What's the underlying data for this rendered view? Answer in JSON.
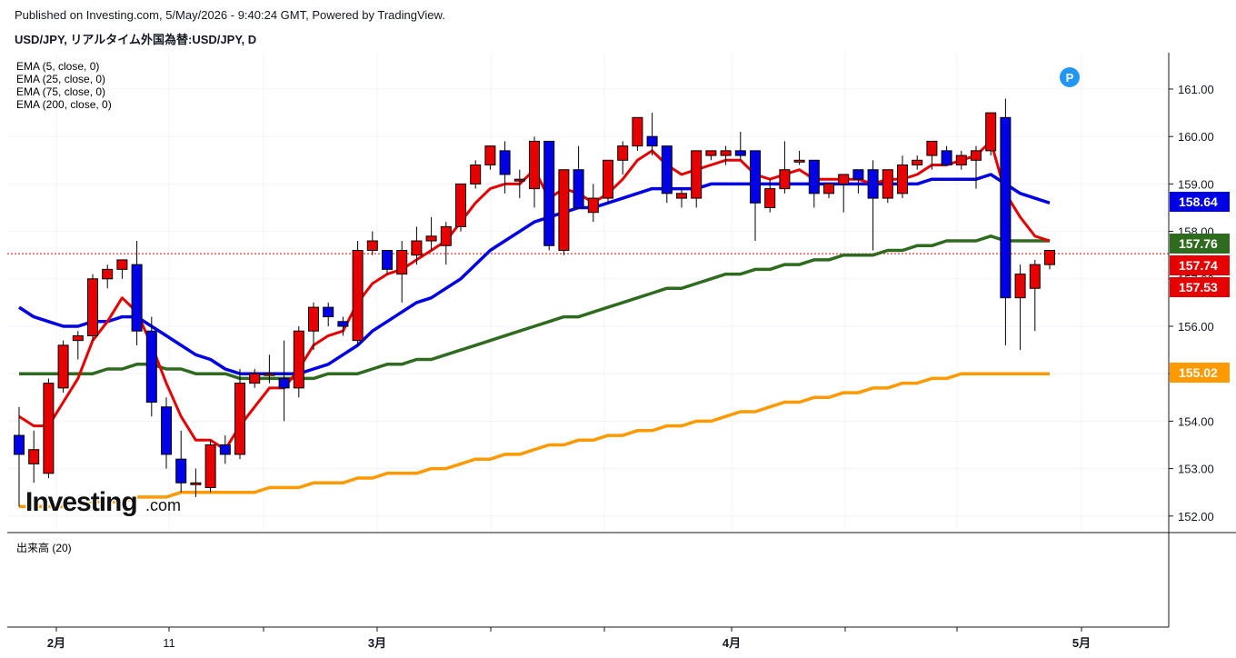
{
  "header": {
    "published": "Published on Investing.com, 5/May/2026 - 9:40:24 GMT, Powered by TradingView.",
    "symbol": "USD/JPY, リアルタイム外国為替:USD/JPY, D"
  },
  "legend": {
    "ema5": "EMA (5, close, 0)",
    "ema25": "EMA (25, close, 0)",
    "ema75": "EMA (75, close, 0)",
    "ema200": "EMA (200, close, 0)"
  },
  "volume_label": "出来高 (20)",
  "logo": {
    "text": "Investing",
    "suffix": ".com"
  },
  "marker_label": "P",
  "chart_data": {
    "type": "candlestick",
    "ylim": [
      151.75,
      161.75
    ],
    "y_ticks": [
      "161.00",
      "160.00",
      "159.00",
      "158.00",
      "157.00",
      "156.00",
      "155.00",
      "154.00",
      "153.00",
      "152.00"
    ],
    "x_ticks": [
      "2月",
      "11",
      "3月",
      "4月",
      "5月"
    ],
    "price_labels": [
      {
        "value": 158.64,
        "text": "158.64",
        "color": "#0000e6"
      },
      {
        "value": 157.76,
        "text": "157.76",
        "color": "#2e6b1f"
      },
      {
        "value": 157.74,
        "text": "157.74",
        "color": "#e60000"
      },
      {
        "value": 157.53,
        "text": "157.53",
        "color": "#e60000"
      },
      {
        "value": 155.02,
        "text": "155.02",
        "color": "#ff9900"
      }
    ],
    "last_price": 157.53,
    "colors": {
      "up": "#e60000",
      "down": "#0000e6",
      "ema5": "#e60000",
      "ema25": "#0000e6",
      "ema75": "#2e6b1f",
      "ema200": "#ff9900"
    },
    "candles": [
      [
        153.7,
        154.3,
        152.2,
        153.3
      ],
      [
        153.1,
        153.8,
        152.7,
        153.4
      ],
      [
        152.9,
        154.9,
        152.8,
        154.8
      ],
      [
        154.7,
        155.7,
        154.6,
        155.6
      ],
      [
        155.7,
        155.9,
        155.3,
        155.8
      ],
      [
        155.8,
        157.1,
        155.7,
        157.0
      ],
      [
        157.0,
        157.3,
        156.8,
        157.2
      ],
      [
        157.2,
        157.4,
        157.0,
        157.4
      ],
      [
        157.3,
        157.8,
        155.6,
        155.9
      ],
      [
        155.9,
        156.2,
        154.1,
        154.4
      ],
      [
        154.3,
        154.5,
        153.0,
        153.3
      ],
      [
        153.2,
        153.8,
        152.5,
        152.7
      ],
      [
        152.7,
        153.0,
        152.4,
        152.7
      ],
      [
        152.6,
        153.6,
        152.5,
        153.5
      ],
      [
        153.5,
        153.7,
        153.1,
        153.3
      ],
      [
        153.3,
        155.1,
        153.2,
        154.8
      ],
      [
        154.8,
        155.1,
        154.7,
        155.0
      ],
      [
        155.0,
        155.4,
        154.8,
        155.0
      ],
      [
        154.9,
        155.7,
        154.0,
        154.7
      ],
      [
        154.7,
        156.0,
        154.5,
        155.9
      ],
      [
        155.9,
        156.5,
        155.5,
        156.4
      ],
      [
        156.4,
        156.5,
        156.0,
        156.2
      ],
      [
        156.1,
        156.2,
        155.8,
        156.0
      ],
      [
        155.7,
        157.8,
        155.6,
        157.6
      ],
      [
        157.6,
        158.0,
        157.5,
        157.8
      ],
      [
        157.6,
        157.6,
        157.1,
        157.2
      ],
      [
        157.1,
        157.8,
        156.5,
        157.6
      ],
      [
        157.5,
        158.1,
        157.3,
        157.8
      ],
      [
        157.8,
        158.3,
        157.6,
        157.9
      ],
      [
        157.7,
        158.2,
        157.3,
        158.1
      ],
      [
        158.1,
        159.0,
        158.0,
        159.0
      ],
      [
        159.0,
        159.5,
        158.9,
        159.4
      ],
      [
        159.4,
        159.8,
        159.3,
        159.8
      ],
      [
        159.7,
        159.9,
        158.8,
        159.2
      ],
      [
        159.1,
        159.3,
        158.7,
        159.1
      ],
      [
        158.9,
        160.0,
        158.5,
        159.9
      ],
      [
        159.9,
        159.9,
        157.6,
        157.7
      ],
      [
        157.6,
        159.3,
        157.5,
        159.3
      ],
      [
        159.3,
        159.8,
        158.5,
        158.5
      ],
      [
        158.4,
        159.0,
        158.2,
        158.7
      ],
      [
        158.7,
        159.5,
        158.6,
        159.5
      ],
      [
        159.5,
        159.9,
        159.2,
        159.8
      ],
      [
        159.8,
        160.4,
        159.7,
        160.4
      ],
      [
        160.0,
        160.5,
        159.6,
        159.8
      ],
      [
        159.8,
        159.8,
        158.6,
        158.8
      ],
      [
        158.7,
        158.9,
        158.5,
        158.8
      ],
      [
        158.7,
        159.7,
        158.5,
        159.7
      ],
      [
        159.6,
        159.7,
        159.5,
        159.7
      ],
      [
        159.6,
        159.8,
        159.4,
        159.7
      ],
      [
        159.7,
        160.1,
        159.5,
        159.6
      ],
      [
        159.7,
        159.7,
        157.8,
        158.6
      ],
      [
        158.5,
        159.1,
        158.4,
        158.9
      ],
      [
        158.9,
        159.9,
        158.8,
        159.3
      ],
      [
        159.5,
        159.7,
        159.4,
        159.5
      ],
      [
        159.5,
        159.5,
        158.5,
        158.8
      ],
      [
        158.8,
        159.0,
        158.7,
        159.0
      ],
      [
        159.0,
        159.2,
        158.4,
        159.2
      ],
      [
        159.3,
        159.3,
        158.8,
        159.1
      ],
      [
        159.3,
        159.5,
        157.6,
        158.7
      ],
      [
        158.7,
        159.3,
        158.6,
        159.3
      ],
      [
        158.8,
        159.6,
        158.7,
        159.4
      ],
      [
        159.4,
        159.6,
        159.3,
        159.5
      ],
      [
        159.6,
        159.9,
        159.3,
        159.9
      ],
      [
        159.7,
        159.8,
        159.4,
        159.4
      ],
      [
        159.4,
        159.7,
        159.3,
        159.6
      ],
      [
        159.5,
        159.8,
        158.9,
        159.7
      ],
      [
        159.7,
        160.5,
        159.6,
        160.5
      ],
      [
        160.4,
        160.8,
        155.6,
        156.6
      ],
      [
        156.6,
        157.3,
        155.5,
        157.1
      ],
      [
        156.8,
        157.4,
        155.9,
        157.3
      ],
      [
        157.3,
        157.5,
        157.2,
        157.6
      ]
    ],
    "ema5": [
      154.1,
      153.9,
      153.9,
      154.4,
      154.9,
      155.7,
      156.1,
      156.6,
      156.3,
      155.6,
      154.8,
      154.1,
      153.6,
      153.6,
      153.4,
      153.9,
      154.3,
      154.7,
      154.7,
      155.1,
      155.6,
      155.8,
      155.9,
      156.5,
      156.9,
      157.1,
      157.2,
      157.4,
      157.6,
      157.8,
      158.2,
      158.6,
      158.9,
      159.0,
      159.0,
      159.3,
      158.7,
      158.9,
      158.8,
      158.6,
      158.8,
      159.1,
      159.5,
      159.7,
      159.4,
      159.2,
      159.3,
      159.4,
      159.5,
      159.5,
      159.2,
      159.1,
      159.2,
      159.3,
      159.1,
      159.1,
      159.1,
      159.1,
      159.0,
      159.1,
      159.1,
      159.2,
      159.4,
      159.4,
      159.5,
      159.6,
      159.9,
      158.8,
      158.3,
      157.9,
      157.8
    ],
    "ema25": [
      156.4,
      156.2,
      156.1,
      156.0,
      156.0,
      156.1,
      156.1,
      156.2,
      156.2,
      156.0,
      155.8,
      155.6,
      155.4,
      155.3,
      155.1,
      155.0,
      155.0,
      155.0,
      155.0,
      155.0,
      155.1,
      155.2,
      155.4,
      155.6,
      155.9,
      156.1,
      156.3,
      156.5,
      156.6,
      156.8,
      157.0,
      157.3,
      157.6,
      157.8,
      158.0,
      158.2,
      158.3,
      158.4,
      158.5,
      158.5,
      158.6,
      158.7,
      158.8,
      158.9,
      158.9,
      158.9,
      158.9,
      159.0,
      159.0,
      159.0,
      159.0,
      159.0,
      159.0,
      159.0,
      159.0,
      159.0,
      159.0,
      159.0,
      159.0,
      159.0,
      159.0,
      159.0,
      159.1,
      159.1,
      159.1,
      159.1,
      159.2,
      159.0,
      158.8,
      158.7,
      158.6
    ],
    "ema75": [
      155.0,
      155.0,
      155.0,
      155.0,
      155.0,
      155.0,
      155.1,
      155.1,
      155.2,
      155.2,
      155.1,
      155.1,
      155.0,
      155.0,
      155.0,
      154.9,
      154.9,
      154.9,
      154.9,
      154.9,
      154.9,
      155.0,
      155.0,
      155.0,
      155.1,
      155.2,
      155.2,
      155.3,
      155.3,
      155.4,
      155.5,
      155.6,
      155.7,
      155.8,
      155.9,
      156.0,
      156.1,
      156.2,
      156.2,
      156.3,
      156.4,
      156.5,
      156.6,
      156.7,
      156.8,
      156.8,
      156.9,
      157.0,
      157.1,
      157.1,
      157.2,
      157.2,
      157.3,
      157.3,
      157.4,
      157.4,
      157.5,
      157.5,
      157.5,
      157.6,
      157.6,
      157.7,
      157.7,
      157.8,
      157.8,
      157.8,
      157.9,
      157.8,
      157.8,
      157.8,
      157.8
    ],
    "ema200": [
      152.2,
      152.2,
      152.2,
      152.2,
      152.3,
      152.3,
      152.3,
      152.3,
      152.4,
      152.4,
      152.4,
      152.5,
      152.5,
      152.5,
      152.5,
      152.5,
      152.5,
      152.6,
      152.6,
      152.6,
      152.7,
      152.7,
      152.7,
      152.8,
      152.8,
      152.9,
      152.9,
      152.9,
      153.0,
      153.0,
      153.1,
      153.2,
      153.2,
      153.3,
      153.3,
      153.4,
      153.5,
      153.5,
      153.6,
      153.6,
      153.7,
      153.7,
      153.8,
      153.8,
      153.9,
      153.9,
      154.0,
      154.0,
      154.1,
      154.2,
      154.2,
      154.3,
      154.4,
      154.4,
      154.5,
      154.5,
      154.6,
      154.6,
      154.7,
      154.7,
      154.8,
      154.8,
      154.9,
      154.9,
      155.0,
      155.0,
      155.0,
      155.0,
      155.0,
      155.0,
      155.0
    ]
  }
}
